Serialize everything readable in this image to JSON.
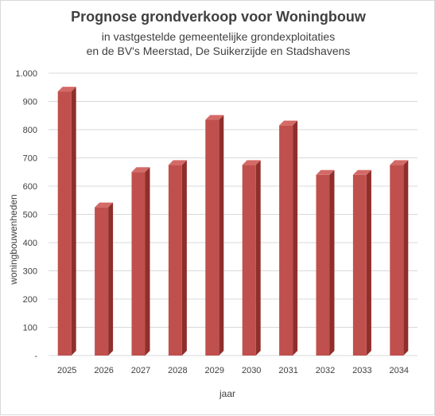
{
  "chart_data": {
    "type": "bar",
    "title": "Prognose grondverkoop voor Woningbouw",
    "subtitle_lines": [
      "in vastgestelde gemeentelijke grondexploitaties",
      "en de BV's Meerstad, De Suikerzijde en Stadshavens"
    ],
    "xlabel": "jaar",
    "ylabel": "woningbouwenheden",
    "categories": [
      "2025",
      "2026",
      "2027",
      "2028",
      "2029",
      "2030",
      "2031",
      "2032",
      "2033",
      "2034"
    ],
    "values": [
      935,
      525,
      650,
      675,
      835,
      675,
      815,
      640,
      640,
      675
    ],
    "ylim": [
      0,
      1000
    ],
    "yticks": [
      0,
      100,
      200,
      300,
      400,
      500,
      600,
      700,
      800,
      900,
      1000
    ],
    "ytick_labels": [
      "-",
      "100",
      "200",
      "300",
      "400",
      "500",
      "600",
      "700",
      "800",
      "900",
      "1.000"
    ],
    "grid": true,
    "style": "3d-column",
    "colors": {
      "bar_front": "#c0504d",
      "bar_side": "#8e2f2c",
      "bar_top": "#d46a67",
      "grid": "#d9d9d9"
    }
  }
}
